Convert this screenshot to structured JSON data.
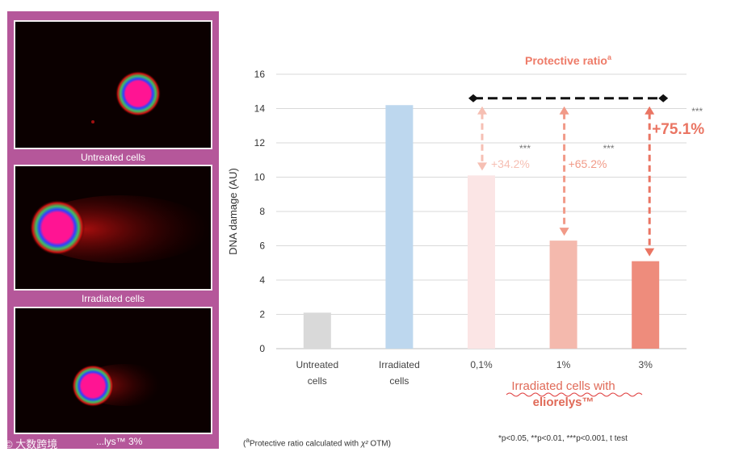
{
  "panels": [
    {
      "caption": "Untreated cells"
    },
    {
      "caption": "Irradiated cells"
    },
    {
      "caption": "...lys™ 3%"
    }
  ],
  "watermark": "大数跨境",
  "chart_data": {
    "type": "bar",
    "ylabel": "DNA damage (AU)",
    "ylim": [
      0,
      16
    ],
    "yticks": [
      0,
      2,
      4,
      6,
      8,
      10,
      12,
      14,
      16
    ],
    "categories": [
      "Untreated cells",
      "Irradiated cells",
      "0,1%",
      "1%",
      "3%"
    ],
    "values": [
      2.1,
      14.2,
      10.1,
      6.3,
      5.1
    ],
    "bar_colors": [
      "#d9d9d9",
      "#bdd7ee",
      "#fbe5e5",
      "#f4b9ad",
      "#ee8c7c"
    ],
    "group_label": "Irradiated cells with eliorelys™",
    "reference_line_value": 14.6,
    "protective_title": "Protective ratio",
    "protective_title_sup": "a",
    "annotations": [
      {
        "label": "+34.2%",
        "stars": "***",
        "color": "#f6bfb3"
      },
      {
        "label": "+65.2%",
        "stars": "***",
        "color": "#f19a88"
      },
      {
        "label": "+75.1%",
        "stars": "***",
        "color": "#ea7563"
      }
    ],
    "grid": true
  },
  "footnotes": {
    "protective_prefix": "(",
    "protective_sup": "a",
    "protective_text": "Protective ratio calculated with",
    "protective_suffix": "OTM)",
    "pvalues": "*p<0.05,  **p<0.01,  ***p<0.001,  t test"
  }
}
